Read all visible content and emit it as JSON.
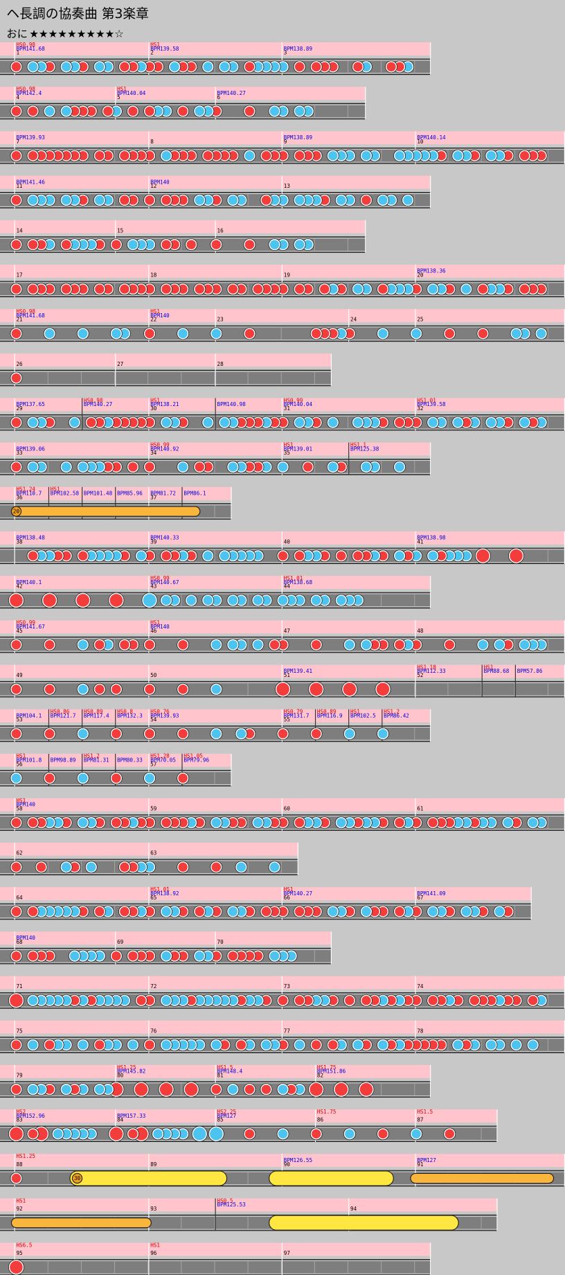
{
  "title": "ヘ長調の協奏曲 第3楽章",
  "difficulty": "おに",
  "stars": "★★★★★★★★★☆",
  "rows": [
    {
      "markers": [
        {
          "hs": "HS0.98",
          "bpm": "BPM141.68",
          "num": "1"
        },
        {
          "hs": "HS1",
          "bpm": "BPM139.58",
          "num": "2"
        },
        {
          "bpm": "BPM138.89",
          "num": "3"
        }
      ]
    },
    {
      "markers": [
        {
          "hs": "HS0.98",
          "bpm": "BPM142.4",
          "num": "4"
        },
        {
          "hs": "HS1",
          "bpm": "BPM140.04",
          "num": "5"
        },
        {
          "bpm": "BPM140.27",
          "num": "6"
        }
      ]
    },
    {
      "markers": [
        {
          "bpm": "BPM139.93",
          "num": "7"
        },
        {
          "num": "8"
        },
        {
          "bpm": "BPM138.89",
          "num": "9"
        },
        {
          "bpm": "BPM140.14",
          "num": "10"
        }
      ]
    },
    {
      "markers": [
        {
          "bpm": "BPM141.46",
          "num": "11"
        },
        {
          "bpm": "BPM140",
          "num": "12"
        },
        {
          "num": "13"
        }
      ]
    },
    {
      "markers": [
        {
          "num": "14"
        },
        {
          "num": "15"
        },
        {
          "num": "16"
        }
      ]
    },
    {
      "markers": [
        {
          "num": "17"
        },
        {
          "num": "18"
        },
        {
          "num": "19"
        },
        {
          "bpm": "BPM138.36",
          "num": "20"
        }
      ]
    },
    {
      "markers": [
        {
          "hs": "HS0.98",
          "bpm": "BPM141.68",
          "num": "21"
        },
        {
          "hs": "HS1",
          "bpm": "BPM140",
          "num": "22"
        },
        {
          "num": "23"
        },
        {
          "num": "24"
        },
        {
          "num": "25"
        }
      ]
    },
    {
      "markers": [
        {
          "num": "26"
        },
        {
          "num": "27"
        },
        {
          "num": "28"
        }
      ]
    },
    {
      "markers": [
        {
          "bpm": "BPM137.65",
          "num": "29"
        },
        {
          "hs": "HS0.98",
          "bpm": "BPM140.27"
        },
        {
          "hs": "HS1",
          "bpm": "BPM138.21",
          "num": "30"
        },
        {
          "bpm": "BPM140.98"
        },
        {
          "hs": "HS0.99",
          "bpm": "BPM140.04",
          "num": "31"
        },
        {
          "hs": "HS1.01",
          "bpm": "BPM139.58",
          "num": "32"
        }
      ]
    },
    {
      "markers": [
        {
          "bpm": "BPM139.06",
          "num": "33"
        },
        {
          "hs": "HS0.99",
          "bpm": "BPM140.92",
          "num": "34"
        },
        {
          "hs": "HS1",
          "bpm": "BPM139.01",
          "num": "35"
        },
        {
          "hs": "HS1.1",
          "bpm": "BPM125.38"
        }
      ]
    },
    {
      "markers": [
        {
          "hs": "HS1.24",
          "bpm": "BPM110.7",
          "num": "36"
        },
        {
          "hs": "HS1",
          "bpm": "BPM102.58"
        },
        {
          "bpm": "BPM101.48"
        },
        {
          "bpm": "BPM85.96"
        },
        {
          "bpm": "BPM81.72",
          "num": "37"
        },
        {
          "bpm": "BPM86.1"
        }
      ],
      "roll": "20"
    },
    {
      "markers": [
        {
          "bpm": "BPM138.48",
          "num": "38"
        },
        {
          "bpm": "BPM140.33",
          "num": "39"
        },
        {
          "num": "40"
        },
        {
          "bpm": "BPM138.98",
          "num": "41"
        }
      ]
    },
    {
      "markers": [
        {
          "bpm": "BPM140.1",
          "num": "42"
        },
        {
          "hs": "HS0.99",
          "bpm": "BPM140.67",
          "num": "43"
        },
        {
          "hs": "HS1.01",
          "bpm": "BPM138.68",
          "num": "44"
        }
      ]
    },
    {
      "markers": [
        {
          "hs": "HS0.99",
          "bpm": "BPM141.67",
          "num": "45"
        },
        {
          "hs": "HS1",
          "bpm": "BPM140",
          "num": "46"
        },
        {
          "num": "47"
        },
        {
          "num": "48"
        }
      ]
    },
    {
      "markers": [
        {
          "num": "49"
        },
        {
          "num": "50"
        },
        {
          "bpm": "BPM139.41",
          "num": "51"
        },
        {
          "hs": "HS1.18",
          "bpm": "BPM112.33",
          "num": "52"
        },
        {
          "hs": "HS1",
          "bpm": "BPM88.68"
        },
        {
          "bpm": "BPM57.86"
        }
      ]
    },
    {
      "markers": [
        {
          "bpm": "BPM104.1",
          "num": "53"
        },
        {
          "hs": "HS0.86",
          "bpm": "BPM121.7"
        },
        {
          "hs": "HS0.89",
          "bpm": "BPM117.4"
        },
        {
          "hs": "HS0.8",
          "bpm": "BPM132.3"
        },
        {
          "hs": "HS0.76",
          "bpm": "BPM139.93",
          "num": "54"
        },
        {
          "hs": "HS0.79",
          "bpm": "BPM131.7",
          "num": "55"
        },
        {
          "hs": "HS0.89",
          "bpm": "BPM116.9"
        },
        {
          "hs": "HS1",
          "bpm": "BPM102.5"
        },
        {
          "hs": "HS1.2",
          "bpm": "BPM86.42"
        }
      ]
    },
    {
      "markers": [
        {
          "hs": "HS1",
          "bpm": "BPM101.8",
          "num": "56"
        },
        {
          "bpm": "BPM98.89"
        },
        {
          "hs": "HS1.2",
          "bpm": "BPM81.31"
        },
        {
          "bpm": "BPM80.33"
        },
        {
          "hs": "HS1.28",
          "bpm": "BPM70.05",
          "num": "57"
        },
        {
          "hs": "HS1.05",
          "bpm": "BPM79.96"
        }
      ]
    },
    {
      "markers": [
        {
          "hs": "HS1",
          "bpm": "BPM140",
          "num": "58"
        },
        {
          "num": "59"
        },
        {
          "num": "60"
        },
        {
          "num": "61"
        }
      ]
    },
    {
      "markers": [
        {
          "num": "62"
        },
        {
          "num": "63"
        }
      ]
    },
    {
      "markers": [
        {
          "num": "64"
        },
        {
          "hs": "HS1.01",
          "bpm": "BPM138.92",
          "num": "65"
        },
        {
          "hs": "HS1",
          "bpm": "BPM140.27",
          "num": "66"
        },
        {
          "bpm": "BPM141.09",
          "num": "67"
        }
      ]
    },
    {
      "markers": [
        {
          "bpm": "BPM140",
          "num": "68"
        },
        {
          "num": "69"
        },
        {
          "num": "70"
        }
      ]
    },
    {
      "markers": [
        {
          "num": "71"
        },
        {
          "num": "72"
        },
        {
          "num": "73"
        },
        {
          "num": "74"
        }
      ]
    },
    {
      "markers": [
        {
          "num": "75"
        },
        {
          "num": "76"
        },
        {
          "num": "77"
        },
        {
          "num": "78"
        }
      ]
    },
    {
      "markers": [
        {
          "num": "79"
        },
        {
          "hs": "HS1.25",
          "bpm": "BPM145.82",
          "num": "80"
        },
        {
          "hs": "HS1.5",
          "bpm": "BPM148.4",
          "num": "81"
        },
        {
          "hs": "HS1.75",
          "bpm": "BPM151.86",
          "num": "82"
        }
      ]
    },
    {
      "markers": [
        {
          "hs": "HS2",
          "bpm": "BPM152.96",
          "num": "83"
        },
        {
          "bpm": "BPM157.33",
          "num": "84"
        },
        {
          "hs": "HS2.25",
          "bpm": "BPM127",
          "num": "85"
        },
        {
          "hs": "HS1.75",
          "num": "86"
        },
        {
          "hs": "HS1.5",
          "num": "87"
        }
      ]
    },
    {
      "markers": [
        {
          "hs": "HS1.25",
          "num": "88"
        },
        {
          "num": "89"
        },
        {
          "bpm": "BPM126.55",
          "num": "90"
        },
        {
          "bpm": "BPM127",
          "num": "91"
        }
      ],
      "roll": "30"
    },
    {
      "markers": [
        {
          "hs": "HS1",
          "num": "92"
        },
        {
          "num": "93"
        },
        {
          "hs": "HS0.5",
          "bpm": "BPM125.53"
        },
        {
          "num": "94"
        }
      ]
    },
    {
      "markers": [
        {
          "hs": "HS6.5",
          "num": "95"
        },
        {
          "hs": "HS1",
          "num": "96"
        },
        {
          "num": "97"
        }
      ]
    }
  ]
}
